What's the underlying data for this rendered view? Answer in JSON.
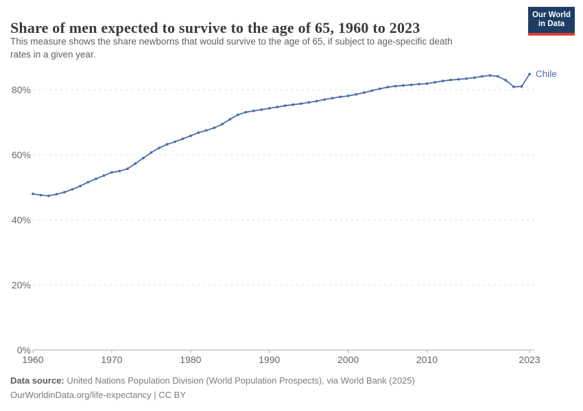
{
  "header": {
    "title": "Share of men expected to survive to the age of 65, 1960 to 2023",
    "subtitle_lines": [
      "This measure shows the share newborns that would survive to the age of 65, if subject to age-specific death",
      "rates in a given year."
    ],
    "logo": {
      "line1": "Our World",
      "line2": "in Data"
    }
  },
  "chart_data": {
    "type": "line",
    "title": "Share of men expected to survive to the age of 65, 1960 to 2023",
    "xlabel": "",
    "ylabel": "",
    "grid": true,
    "legend_position": "end-of-line",
    "entity": "Chile",
    "line_color": "#4C6DA8",
    "ylim": [
      0,
      88
    ],
    "yticks": [
      0,
      20,
      40,
      60,
      80
    ],
    "ytick_suffix": "%",
    "xticks": [
      1960,
      1970,
      1980,
      1990,
      2000,
      2010,
      2023
    ],
    "x": [
      1960,
      1961,
      1962,
      1963,
      1964,
      1965,
      1966,
      1967,
      1968,
      1969,
      1970,
      1971,
      1972,
      1973,
      1974,
      1975,
      1976,
      1977,
      1978,
      1979,
      1980,
      1981,
      1982,
      1983,
      1984,
      1985,
      1986,
      1987,
      1988,
      1989,
      1990,
      1991,
      1992,
      1993,
      1994,
      1995,
      1996,
      1997,
      1998,
      1999,
      2000,
      2001,
      2002,
      2003,
      2004,
      2005,
      2006,
      2007,
      2008,
      2009,
      2010,
      2011,
      2012,
      2013,
      2014,
      2015,
      2016,
      2017,
      2018,
      2019,
      2020,
      2021,
      2022,
      2023
    ],
    "series": [
      {
        "name": "Chile",
        "values": [
          48.0,
          47.6,
          47.4,
          47.9,
          48.5,
          49.4,
          50.4,
          51.6,
          52.6,
          53.6,
          54.6,
          55.0,
          55.7,
          57.3,
          59.0,
          60.7,
          62.1,
          63.2,
          64.0,
          64.9,
          65.8,
          66.8,
          67.5,
          68.3,
          69.4,
          70.9,
          72.3,
          73.1,
          73.5,
          73.9,
          74.3,
          74.7,
          75.1,
          75.4,
          75.7,
          76.1,
          76.5,
          77.0,
          77.4,
          77.8,
          78.1,
          78.6,
          79.1,
          79.7,
          80.3,
          80.8,
          81.1,
          81.3,
          81.5,
          81.7,
          81.9,
          82.3,
          82.7,
          83.0,
          83.2,
          83.4,
          83.7,
          84.1,
          84.4,
          84.1,
          82.9,
          80.9,
          81.0,
          84.8
        ]
      }
    ]
  },
  "colors": {
    "line": "#4C6DA8",
    "grid": "#dedede",
    "axis": "#a8a8a8",
    "tick_label": "#686868",
    "logo_bg": "#1d3d63",
    "logo_accent": "#dc3e34"
  },
  "footer": {
    "source_label": "Data source:",
    "source_text": " United Nations Population Division (World Population Prospects), via World Bank (2025)",
    "link_line": "OurWorldinData.org/life-expectancy | CC BY"
  }
}
